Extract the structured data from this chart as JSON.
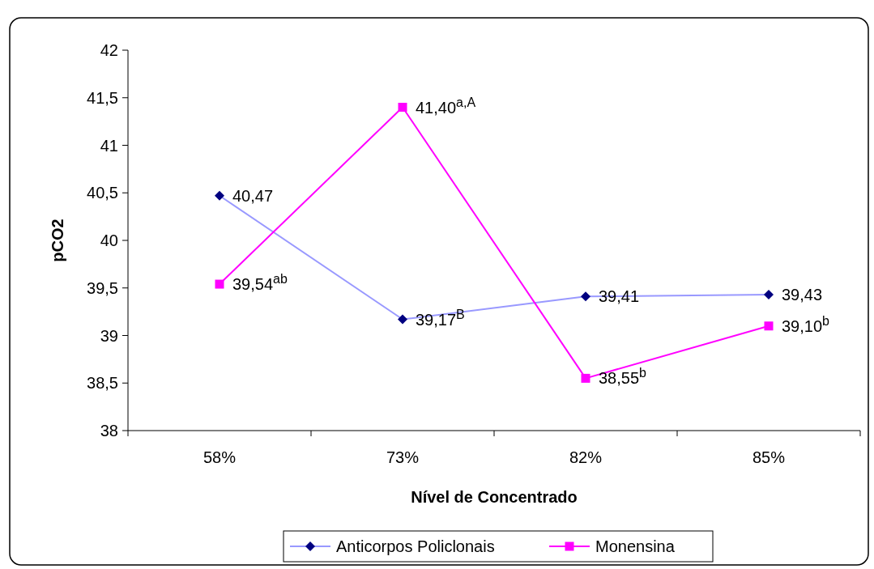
{
  "chart_data": {
    "type": "line",
    "xlabel": "Nível de Concentrado",
    "ylabel": "pCO2",
    "categories": [
      "58%",
      "73%",
      "82%",
      "85%"
    ],
    "ylim": [
      38,
      42
    ],
    "yticks": [
      38,
      {
        "value": 38.5,
        "label": "38,5"
      },
      39,
      {
        "value": 39.5,
        "label": "39,5"
      },
      40,
      {
        "value": 40.5,
        "label": "40,5"
      },
      41,
      {
        "value": 41.5,
        "label": "41,5"
      },
      42
    ],
    "grid": false,
    "legend": "bottom",
    "series": [
      {
        "name": "Anticorpos Policlonais",
        "color": "#9999ff",
        "colors": [
          "#000080",
          "#000080",
          "#000080",
          "#000080"
        ],
        "marker": "diamond",
        "values": [
          40.47,
          39.17,
          39.41,
          39.43
        ],
        "value_labels": [
          "40,47",
          "39,17$^{B}$",
          "39,41",
          "39,43"
        ]
      },
      {
        "name": "Monensina",
        "color": "#ff00ff",
        "marker": "square",
        "values": [
          39.54,
          41.4,
          38.55,
          39.1
        ],
        "value_labels": [
          "39,54$^{ab}$",
          "41,40$^{a,A}$",
          "38,55$^{b}$",
          "39,10$^{b}$"
        ]
      }
    ]
  }
}
